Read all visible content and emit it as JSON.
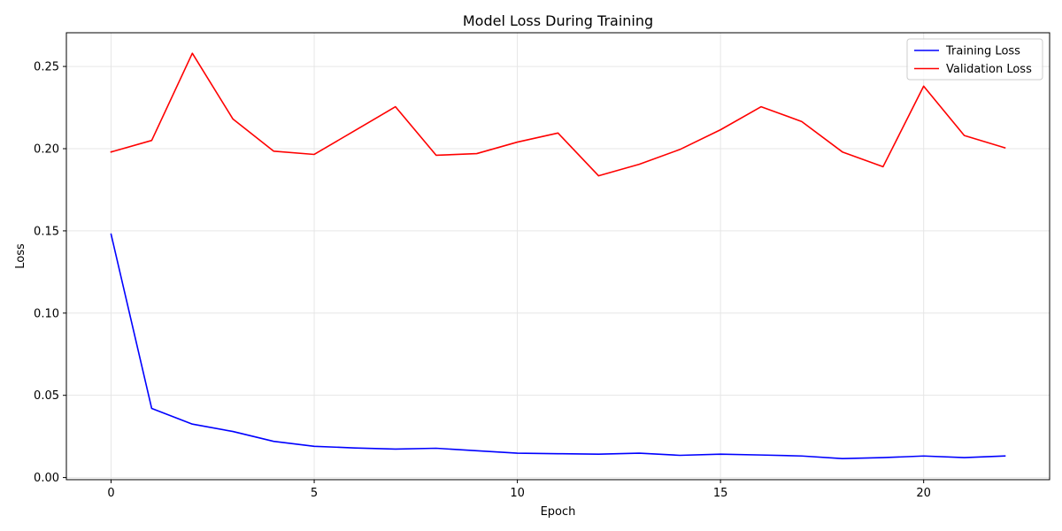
{
  "chart_data": {
    "type": "line",
    "title": "Model Loss During Training",
    "xlabel": "Epoch",
    "ylabel": "Loss",
    "xlim": [
      -1.1,
      23.1
    ],
    "ylim": [
      -0.0013,
      0.2705
    ],
    "xticks": [
      0,
      5,
      10,
      15,
      20
    ],
    "xtick_labels": [
      "0",
      "5",
      "10",
      "15",
      "20"
    ],
    "yticks": [
      0.0,
      0.05,
      0.1,
      0.15,
      0.2,
      0.25
    ],
    "ytick_labels": [
      "0.00",
      "0.05",
      "0.10",
      "0.15",
      "0.20",
      "0.25"
    ],
    "grid": true,
    "legend_position": "upper right",
    "x": [
      0,
      1,
      2,
      3,
      4,
      5,
      6,
      7,
      8,
      9,
      10,
      11,
      12,
      13,
      14,
      15,
      16,
      17,
      18,
      19,
      20,
      21,
      22
    ],
    "series": [
      {
        "name": "Training Loss",
        "color": "#0000ff",
        "values": [
          0.148,
          0.042,
          0.0325,
          0.028,
          0.022,
          0.019,
          0.018,
          0.0173,
          0.0178,
          0.0163,
          0.0148,
          0.0145,
          0.0142,
          0.0148,
          0.0135,
          0.0142,
          0.0137,
          0.0131,
          0.0115,
          0.0121,
          0.0131,
          0.0121,
          0.0131
        ]
      },
      {
        "name": "Validation Loss",
        "color": "#ff0000",
        "values": [
          0.198,
          0.205,
          0.258,
          0.218,
          0.1985,
          0.1965,
          0.211,
          0.2255,
          0.196,
          0.197,
          0.204,
          0.2095,
          0.1835,
          0.1905,
          0.1995,
          0.2115,
          0.2255,
          0.2165,
          0.198,
          0.189,
          0.238,
          0.208,
          0.2005
        ]
      }
    ]
  }
}
